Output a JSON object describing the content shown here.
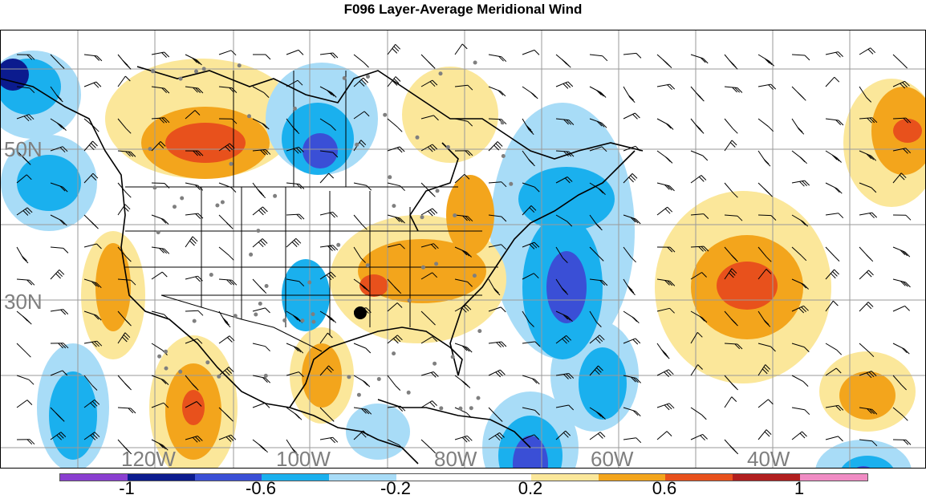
{
  "title": "F096 Layer-Average Meridional Wind",
  "lat_labels": [
    "50N",
    "30N"
  ],
  "lon_labels": [
    "120W",
    "100W",
    "80W",
    "60W",
    "40W"
  ],
  "colorbar": {
    "colors": [
      "#8a3fd0",
      "#0b1b8e",
      "#3a4fd6",
      "#1ab0ee",
      "#a8dcf7",
      "#ffffff",
      "#ffffff",
      "#fbe79a",
      "#f3a51c",
      "#e8511c",
      "#b11f1f",
      "#f08cc4"
    ],
    "tick_labels": [
      "-1",
      "-0.6",
      "-0.2",
      "0.2",
      "0.6",
      "1"
    ]
  },
  "palette": {
    "deep_blue": "#3a4fd6",
    "blue": "#1ab0ee",
    "light_blue": "#a8dcf7",
    "light_yellow": "#fbe79a",
    "orange": "#f3a51c",
    "red_orange": "#e8511c",
    "gray_grid": "#9a9a9a"
  }
}
